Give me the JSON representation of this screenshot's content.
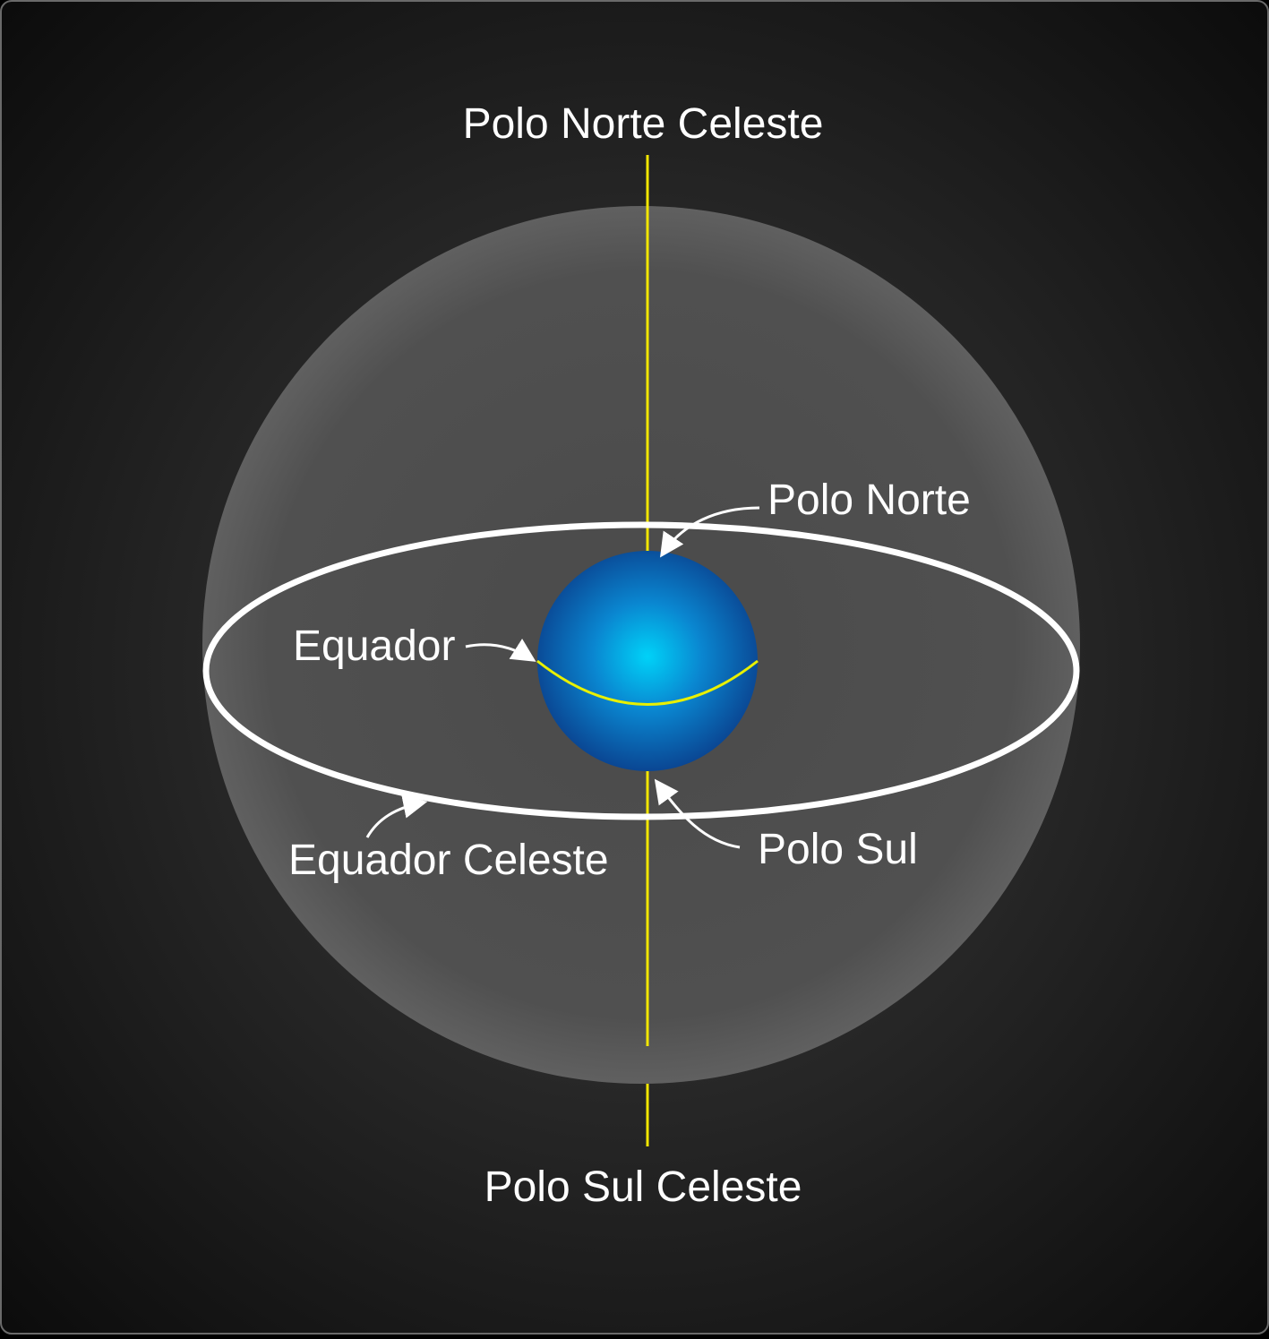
{
  "labels": {
    "north_celestial_pole": "Polo Norte Celeste",
    "south_celestial_pole": "Polo Sul Celeste",
    "north_pole": "Polo Norte",
    "south_pole": "Polo Sul",
    "equator": "Equador",
    "celestial_equator": "Equador Celeste"
  },
  "colors": {
    "background_center": "#3c3c3c",
    "background_edge": "#0d0d0d",
    "celestial_sphere": "#5a5a5a",
    "axis": "#f2e600",
    "earth_center": "#00c8f5",
    "earth_edge": "#0a4f9e",
    "equator_line": "#e8f000",
    "celestial_equator_ring": "#ffffff",
    "text": "#ffffff"
  }
}
